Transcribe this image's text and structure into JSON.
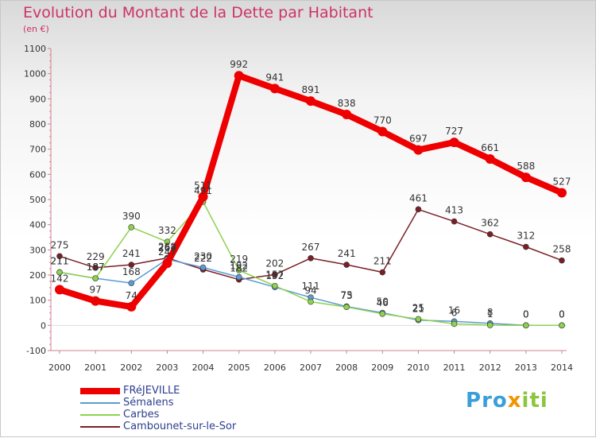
{
  "title": "Evolution du Montant de la Dette par Habitant",
  "subtitle": "(en €)",
  "logo": {
    "letters": [
      "P",
      "r",
      "o",
      "x",
      "i",
      "t",
      "i"
    ],
    "colors": [
      "#3a9fd8",
      "#3a9fd8",
      "#3a9fd8",
      "#f29400",
      "#8cc63f",
      "#8cc63f",
      "#8cc63f"
    ]
  },
  "chart_data": {
    "type": "line",
    "x": [
      "2000",
      "2001",
      "2002",
      "2003",
      "2004",
      "2005",
      "2006",
      "2007",
      "2008",
      "2009",
      "2010",
      "2011",
      "2012",
      "2013",
      "2014"
    ],
    "ylim": [
      -100,
      1100
    ],
    "yticks": [
      -100,
      0,
      100,
      200,
      300,
      400,
      500,
      600,
      700,
      800,
      900,
      1000,
      1100
    ],
    "grid": false,
    "legend": "bottom-left",
    "series": [
      {
        "name": "Cambounet-sur-le-Sor",
        "color": "#7b1f26",
        "values": [
          275,
          229,
          241,
          268,
          222,
          182,
          202,
          267,
          241,
          211,
          461,
          413,
          362,
          312,
          258
        ],
        "labels": [
          "275",
          "229",
          "241",
          "268",
          "222",
          "182",
          "202",
          "267",
          "241",
          "211",
          "461",
          "413",
          "362",
          "312",
          "258"
        ]
      },
      {
        "name": "Sémalens",
        "color": "#5b9bd5",
        "values": [
          211,
          187,
          168,
          263,
          230,
          192,
          152,
          111,
          75,
          50,
          21,
          16,
          8,
          0,
          0
        ],
        "labels": [
          "211",
          "187",
          "168",
          "263",
          "230",
          "192",
          "152",
          "111",
          "75",
          "50",
          "21",
          "16",
          "8",
          "0",
          "0"
        ]
      },
      {
        "name": "Carbes",
        "color": "#8fd14f",
        "values": [
          211,
          187,
          390,
          332,
          491,
          219,
          157,
          94,
          73,
          46,
          25,
          6,
          1,
          0,
          0
        ],
        "labels": [
          "211",
          "187",
          "390",
          "332",
          "491",
          "219",
          "157",
          "94",
          "73",
          "46",
          "25",
          "6",
          "1",
          "0",
          "0"
        ]
      },
      {
        "name": "FRéJEVILLE",
        "color": "#ee0000",
        "values": [
          142,
          97,
          74,
          247,
          511,
          992,
          941,
          891,
          838,
          770,
          697,
          727,
          661,
          588,
          527
        ],
        "labels": [
          "142",
          "97",
          "74",
          "247",
          "511",
          "992",
          "941",
          "891",
          "838",
          "770",
          "697",
          "727",
          "661",
          "588",
          "527"
        ]
      }
    ]
  },
  "legend_items": [
    {
      "label": "FRéJEVILLE",
      "color": "#ee0000",
      "width": 8
    },
    {
      "label": "Sémalens",
      "color": "#5b9bd5",
      "width": 2
    },
    {
      "label": "Carbes",
      "color": "#8fd14f",
      "width": 2
    },
    {
      "label": "Cambounet-sur-le-Sor",
      "color": "#7b1f26",
      "width": 2
    }
  ]
}
